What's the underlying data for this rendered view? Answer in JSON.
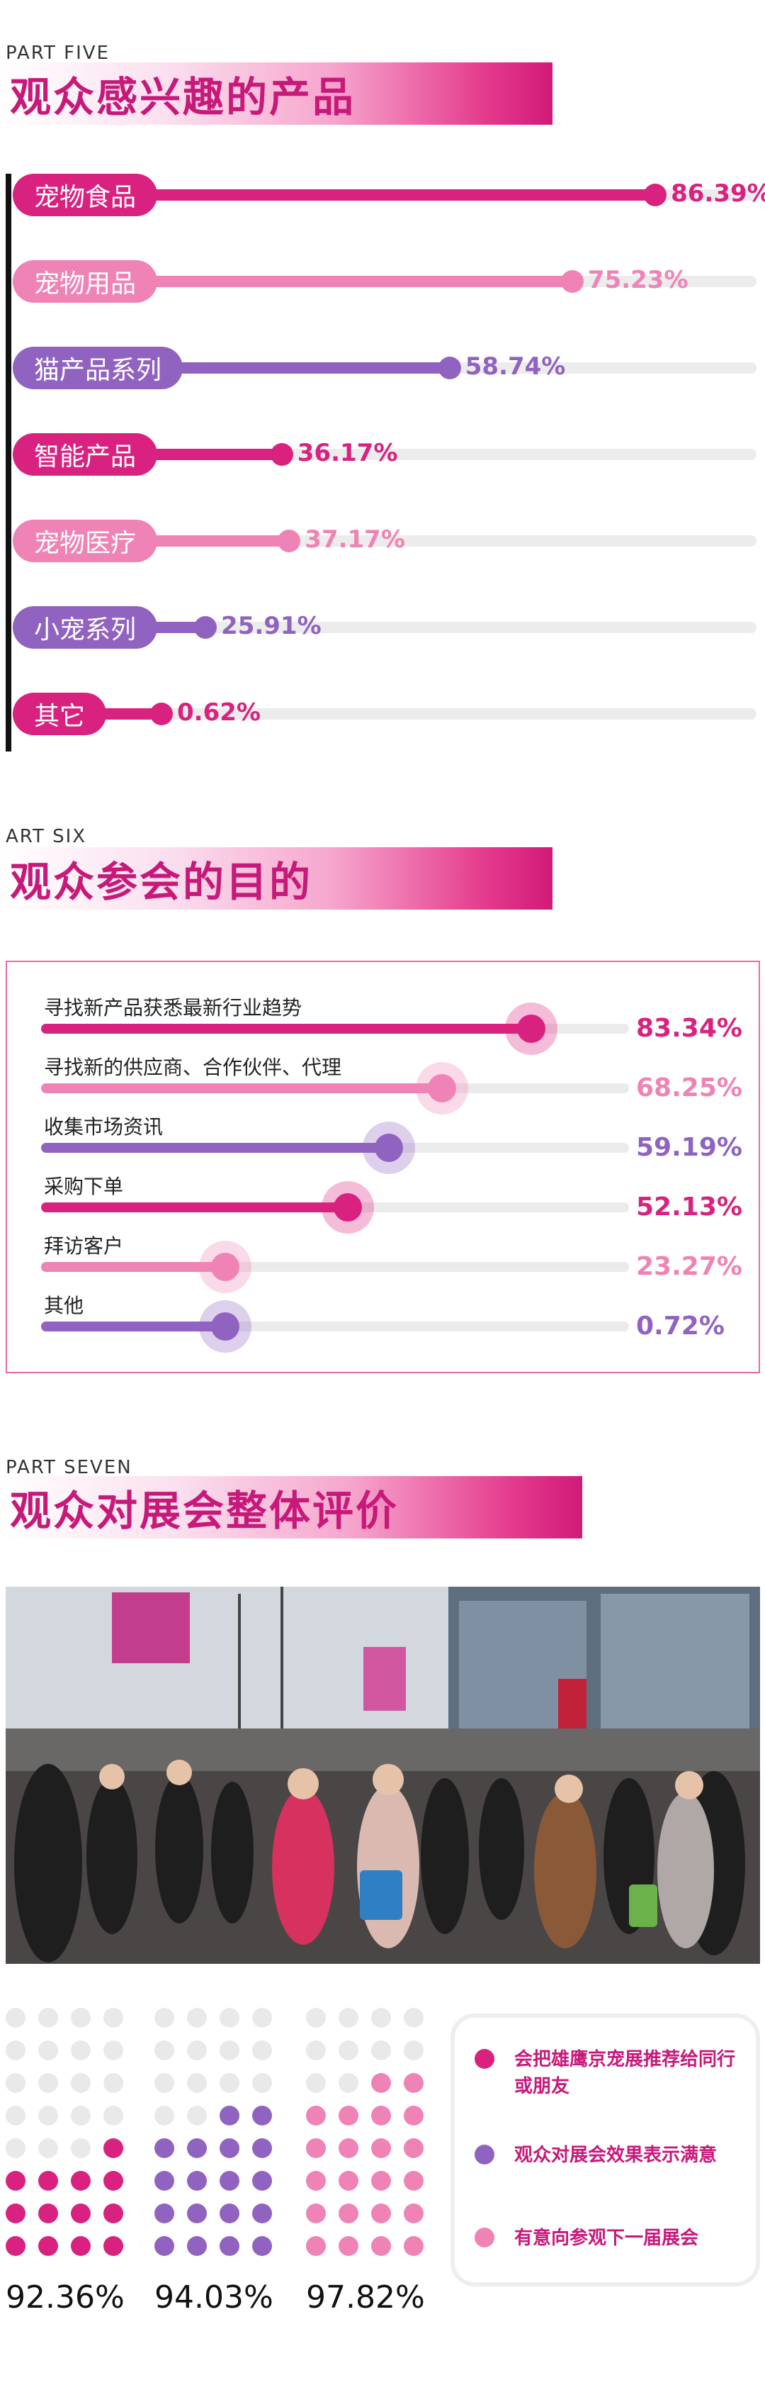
{
  "colors": {
    "magenta": "#d9217f",
    "pink": "#f083b5",
    "purple": "#9163c0",
    "track": "#ececec"
  },
  "part5": {
    "label": "PART FIVE",
    "title": "观众感兴趣的产品",
    "items": [
      {
        "name": "宠物食品",
        "value": "86.39%",
        "pct": 86.39,
        "color": "magenta"
      },
      {
        "name": "宠物用品",
        "value": "75.23%",
        "pct": 75.23,
        "color": "pink"
      },
      {
        "name": "猫产品系列",
        "value": "58.74%",
        "pct": 58.74,
        "color": "purple"
      },
      {
        "name": "智能产品",
        "value": "36.17%",
        "pct": 36.17,
        "color": "magenta"
      },
      {
        "name": "宠物医疗",
        "value": "37.17%",
        "pct": 37.17,
        "color": "pink"
      },
      {
        "name": "小宠系列",
        "value": "25.91%",
        "pct": 25.91,
        "color": "purple"
      },
      {
        "name": "其它",
        "value": "0.62%",
        "pct": 0.62,
        "color": "magenta"
      }
    ]
  },
  "part6": {
    "label": "ART SIX",
    "title": "观众参会的目的",
    "items": [
      {
        "name": "寻找新产品获悉最新行业趋势",
        "value": "83.34%",
        "pct": 83.34,
        "color": "magenta"
      },
      {
        "name": "寻找新的供应商、合作伙伴、代理",
        "value": "68.25%",
        "pct": 68.25,
        "color": "pink"
      },
      {
        "name": "收集市场资讯",
        "value": "59.19%",
        "pct": 59.19,
        "color": "purple"
      },
      {
        "name": "采购下单",
        "value": "52.13%",
        "pct": 52.13,
        "color": "magenta"
      },
      {
        "name": "拜访客户",
        "value": "23.27%",
        "pct": 23.27,
        "color": "pink"
      },
      {
        "name": "其他",
        "value": "0.72%",
        "pct": 0.72,
        "color": "purple"
      }
    ]
  },
  "part7": {
    "label": "PART SEVEN",
    "title": "观众对展会整体评价",
    "stats": [
      {
        "value": "92.36%",
        "pct": 92.36,
        "color": "magenta"
      },
      {
        "value": "94.03%",
        "pct": 94.03,
        "color": "purple"
      },
      {
        "value": "97.82%",
        "pct": 97.82,
        "color": "pink"
      }
    ],
    "legend": [
      {
        "text": "会把雄鹰京宠展推荐给同行或朋友",
        "color": "magenta"
      },
      {
        "text": "观众对展会效果表示满意",
        "color": "purple"
      },
      {
        "text": "有意向参观下一届展会",
        "color": "pink"
      }
    ]
  }
}
